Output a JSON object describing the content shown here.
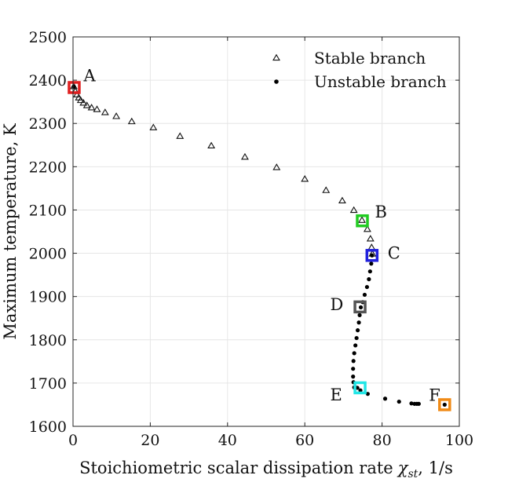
{
  "chart_data": {
    "type": "scatter",
    "xlabel": "Stoichiometric scalar dissipation rate",
    "xlabel_symbol": "χ",
    "xlabel_subscript": "st",
    "xlabel_units": ", 1/s",
    "ylabel": "Maximum temperature, K",
    "xlim": [
      0,
      100
    ],
    "ylim": [
      1600,
      2500
    ],
    "xticks": [
      0,
      20,
      40,
      60,
      80,
      100
    ],
    "yticks": [
      1600,
      1700,
      1800,
      1900,
      2000,
      2100,
      2200,
      2300,
      2400,
      2500
    ],
    "grid": true,
    "legend_position": "top-right",
    "series": [
      {
        "name": "Stable branch",
        "marker": "triangle",
        "x": [
          0.2,
          0.6,
          1.0,
          1.5,
          2.0,
          2.7,
          3.6,
          4.8,
          6.2,
          8.3,
          11.2,
          15.2,
          20.8,
          27.7,
          35.8,
          44.5,
          52.7,
          60.0,
          65.5,
          69.7,
          72.7,
          74.8,
          76.2,
          77.0,
          77.3,
          77.5
        ],
        "y": [
          2385,
          2374,
          2366,
          2359,
          2353,
          2347,
          2341,
          2336,
          2332,
          2325,
          2316,
          2304,
          2290,
          2270,
          2248,
          2222,
          2198,
          2171,
          2145,
          2121,
          2099,
          2076,
          2055,
          2033,
          2013,
          1998
        ]
      },
      {
        "name": "Unstable branch",
        "marker": "dot",
        "x": [
          0.2,
          77.4,
          77.2,
          76.9,
          76.6,
          76.1,
          75.5,
          75.0,
          74.5,
          74.2,
          74.0,
          73.7,
          73.4,
          73.1,
          72.8,
          72.6,
          72.5,
          72.5,
          72.6,
          72.8,
          73.1,
          73.6,
          74.4,
          76.3,
          80.8,
          84.4,
          87.6,
          88.4,
          89.0,
          89.5,
          96.2
        ],
        "y": [
          2385,
          1995,
          1976,
          1958,
          1940,
          1922,
          1904,
          1887,
          1875,
          1857,
          1840,
          1822,
          1804,
          1787,
          1769,
          1751,
          1733,
          1715,
          1702,
          1690,
          1690,
          1689,
          1683,
          1675,
          1664,
          1657,
          1653,
          1652,
          1652,
          1652,
          1650
        ]
      }
    ],
    "highlighted_points": [
      {
        "label": "A",
        "x": 0.3,
        "y": 2383,
        "color": "#e01f1f"
      },
      {
        "label": "B",
        "x": 74.9,
        "y": 2075,
        "color": "#22cc22"
      },
      {
        "label": "C",
        "x": 77.4,
        "y": 1995,
        "color": "#2222dd"
      },
      {
        "label": "D",
        "x": 74.3,
        "y": 1876,
        "color": "#555555"
      },
      {
        "label": "E",
        "x": 74.3,
        "y": 1689,
        "color": "#22e6e6"
      },
      {
        "label": "F",
        "x": 96.2,
        "y": 1650,
        "color": "#f08a16"
      }
    ]
  }
}
